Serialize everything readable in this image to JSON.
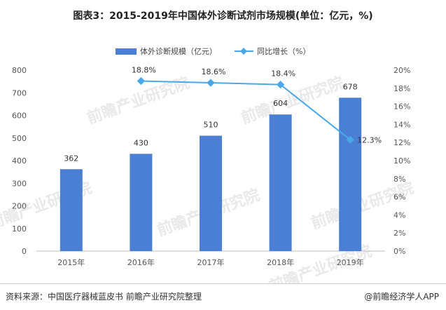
{
  "chart_data": {
    "type": "bar",
    "title": "图表3：2015-2019年中国体外诊断试剂市场规模(单位：亿元，%)",
    "categories": [
      "2015年",
      "2016年",
      "2017年",
      "2018年",
      "2019年"
    ],
    "series": [
      {
        "name": "体外诊断规模（亿元）",
        "type": "bar",
        "axis": "left",
        "values": [
          362,
          430,
          510,
          604,
          678
        ],
        "color": "#4a7fd4",
        "labels": [
          "362",
          "430",
          "510",
          "604",
          "678"
        ]
      },
      {
        "name": "同比增长（%）",
        "type": "line",
        "axis": "right",
        "values": [
          null,
          18.8,
          18.6,
          18.4,
          12.3
        ],
        "color": "#4aa8e8",
        "labels": [
          "",
          "18.8%",
          "18.6%",
          "18.4%",
          "12.3%"
        ]
      }
    ],
    "y_left": {
      "min": 0,
      "max": 800,
      "ticks": [
        "0",
        "100",
        "200",
        "300",
        "400",
        "500",
        "600",
        "700",
        "800"
      ]
    },
    "y_right": {
      "min": 0,
      "max": 20,
      "ticks": [
        "0%",
        "2%",
        "4%",
        "6%",
        "8%",
        "10%",
        "12%",
        "14%",
        "16%",
        "18%",
        "20%"
      ]
    },
    "grid": false,
    "legend": "top-center"
  },
  "footer": {
    "source": "资料来源：中国医疗器械蓝皮书 前瞻产业研究院整理",
    "credit": "@前瞻经济学人APP"
  },
  "watermark": {
    "text": "前瞻产业研究院"
  }
}
